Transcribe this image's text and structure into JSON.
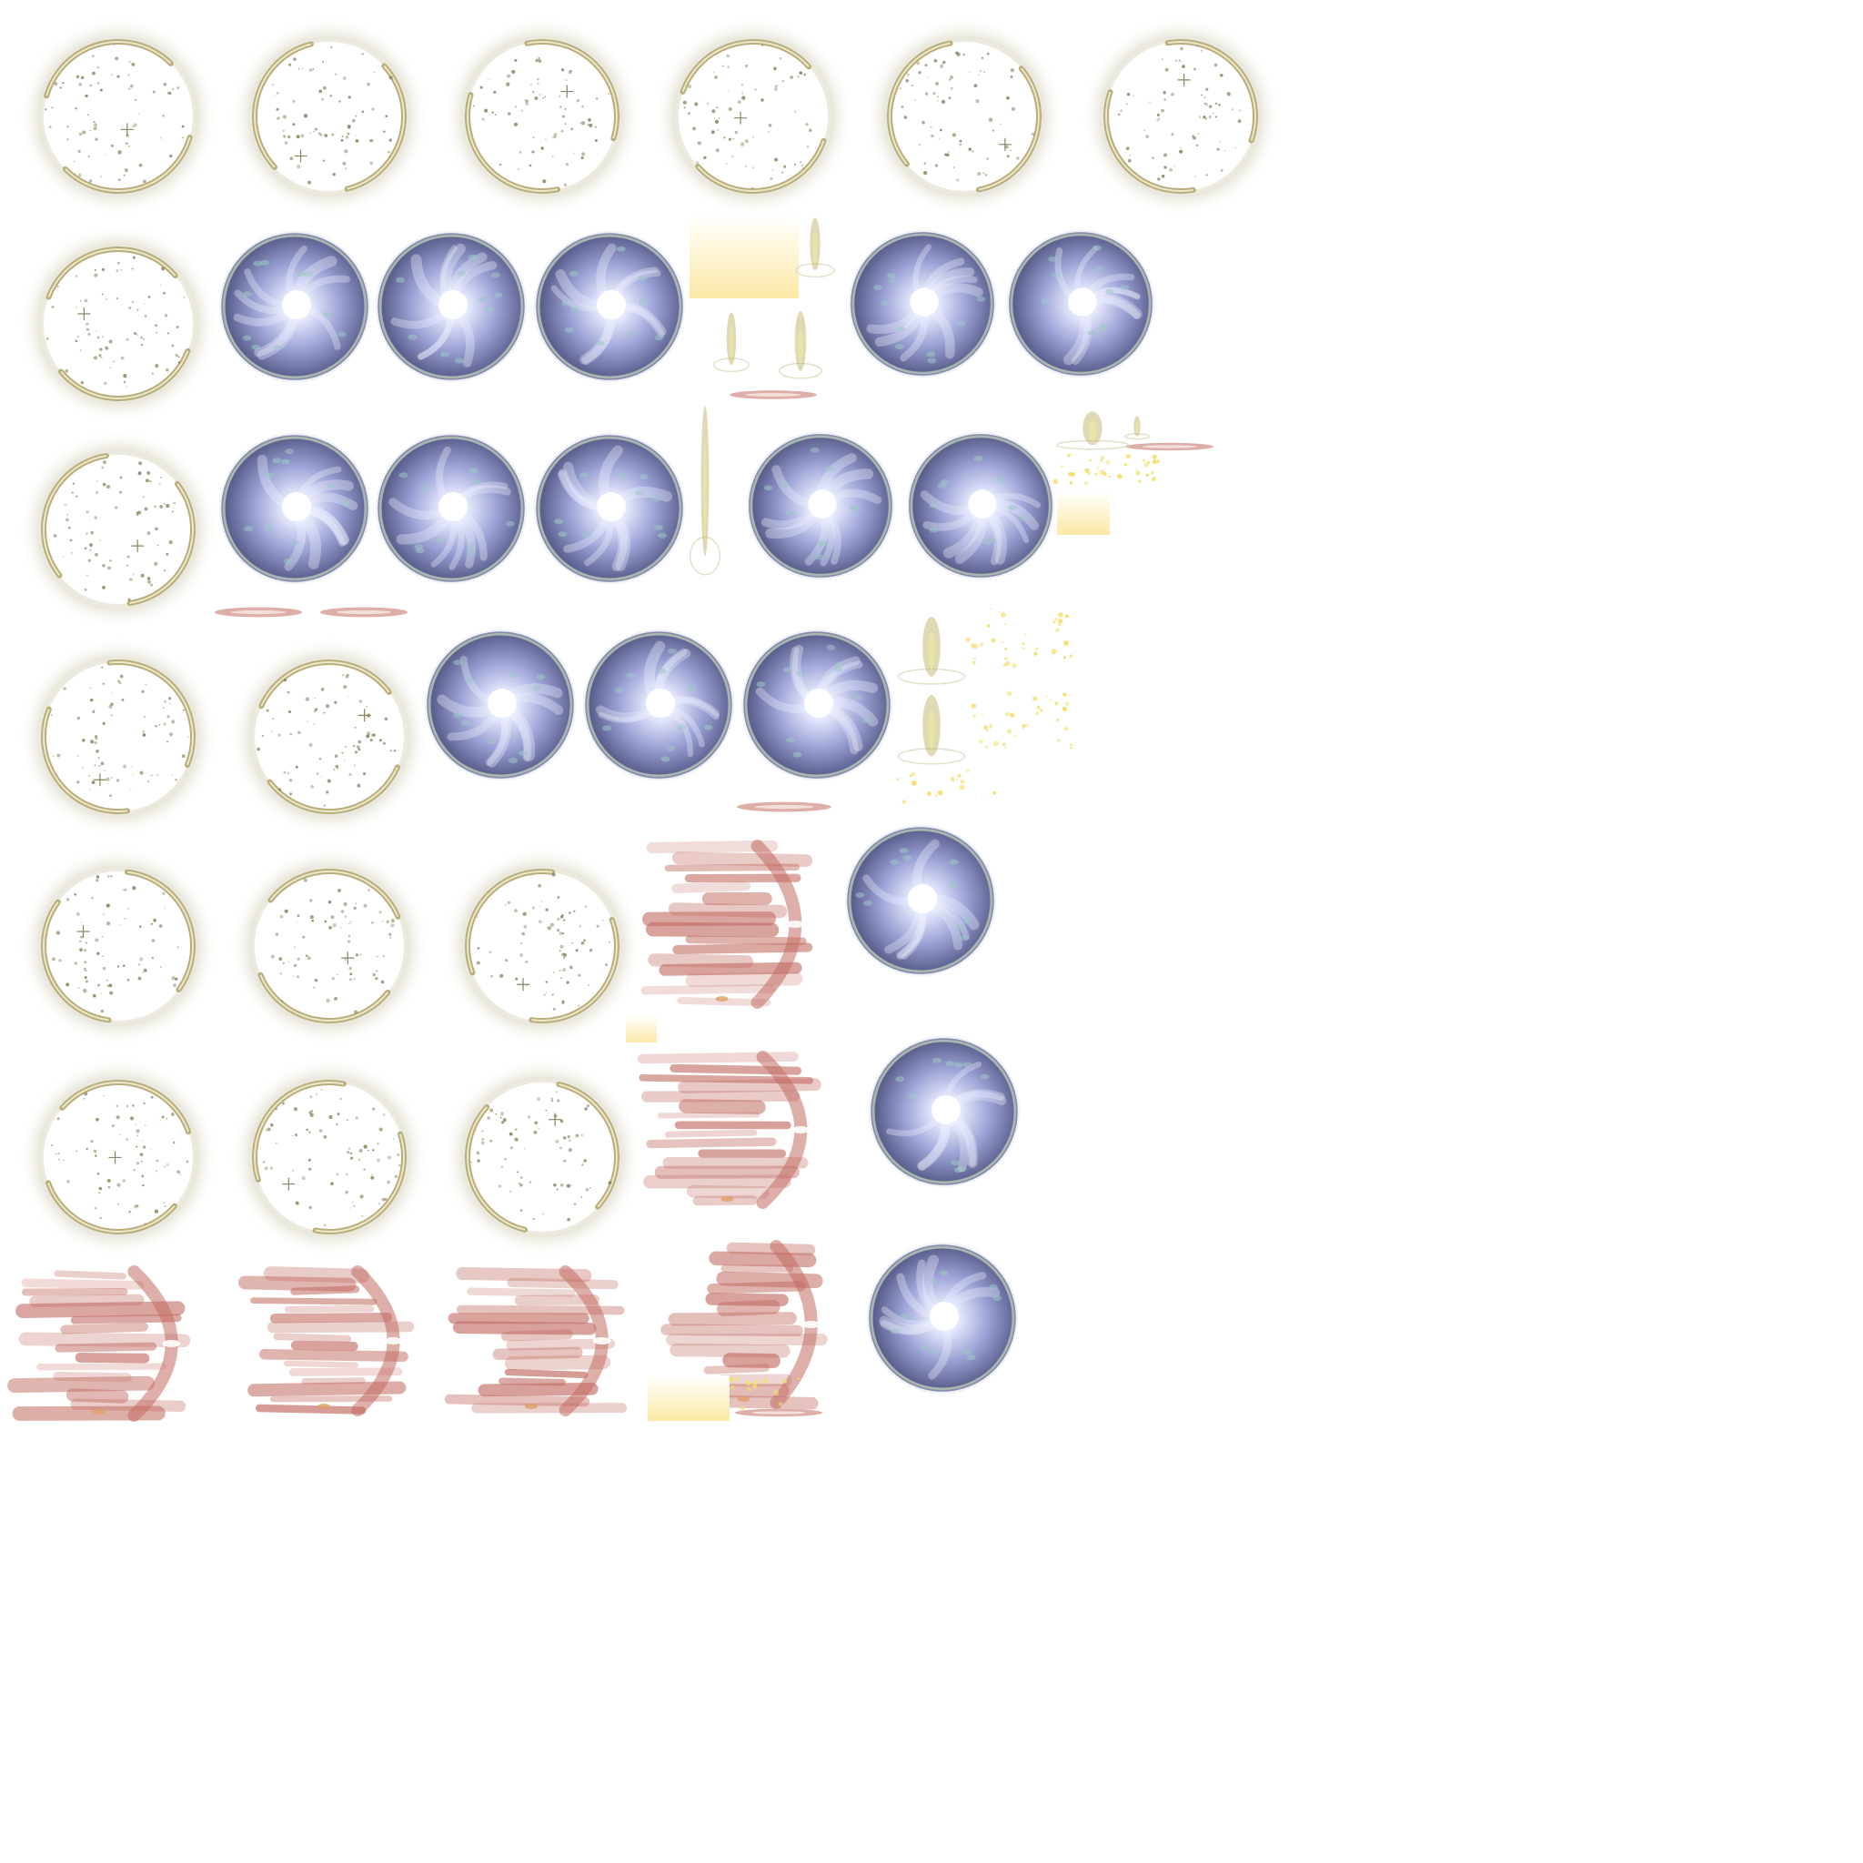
{
  "sheet": {
    "background": "#ffffff",
    "colors": {
      "ring_glow": "#d9d6c2",
      "ring_arc": "#b8ae7c",
      "ring_arc_light": "#ede6c8",
      "speck": "#8a8460",
      "vortex_outer": "#5b5f8e",
      "vortex_mid": "#9da3d6",
      "vortex_inner": "#e9ecff",
      "vortex_teal": "#9fc7c8",
      "vortex_rim": "#a9b5b0",
      "flame_red": "#c26c62",
      "flame_orange": "#e0a066",
      "strip_yellow": "#fbe9a6",
      "spark_yellow": "#f3df6c",
      "pillar_olive": "#b9ad5c"
    }
  },
  "sprites": [
    {
      "kind": "ring",
      "seed": 1
    },
    {
      "kind": "ring",
      "seed": 2
    },
    {
      "kind": "ring",
      "seed": 3
    },
    {
      "kind": "ring",
      "seed": 4
    },
    {
      "kind": "ring",
      "seed": 5
    },
    {
      "kind": "ring",
      "seed": 6
    },
    {
      "kind": "ring",
      "seed": 7
    },
    {
      "kind": "vortex",
      "seed": 11
    },
    {
      "kind": "vortex",
      "seed": 12
    },
    {
      "kind": "vortex",
      "seed": 13
    },
    {
      "kind": "gradient-strip"
    },
    {
      "kind": "light-pillar"
    },
    {
      "kind": "light-pillar"
    },
    {
      "kind": "light-pillar"
    },
    {
      "kind": "blur-streak"
    },
    {
      "kind": "vortex",
      "seed": 14
    },
    {
      "kind": "vortex",
      "seed": 15
    },
    {
      "kind": "ring",
      "seed": 8
    },
    {
      "kind": "vortex",
      "seed": 16
    },
    {
      "kind": "vortex",
      "seed": 17
    },
    {
      "kind": "vortex",
      "seed": 18
    },
    {
      "kind": "light-pillar"
    },
    {
      "kind": "vortex",
      "seed": 19
    },
    {
      "kind": "vortex",
      "seed": 20
    },
    {
      "kind": "light-pillar"
    },
    {
      "kind": "light-pillar"
    },
    {
      "kind": "blur-streak"
    },
    {
      "kind": "sparkles"
    },
    {
      "kind": "sparkles"
    },
    {
      "kind": "gradient-strip"
    },
    {
      "kind": "blur-streak"
    },
    {
      "kind": "blur-streak"
    },
    {
      "kind": "ring",
      "seed": 9
    },
    {
      "kind": "ring",
      "seed": 10
    },
    {
      "kind": "vortex",
      "seed": 21
    },
    {
      "kind": "vortex",
      "seed": 22
    },
    {
      "kind": "vortex",
      "seed": 23
    },
    {
      "kind": "light-pillar"
    },
    {
      "kind": "light-pillar"
    },
    {
      "kind": "sparkles"
    },
    {
      "kind": "sparkles"
    },
    {
      "kind": "sparkles"
    },
    {
      "kind": "sparkles"
    },
    {
      "kind": "sparkles"
    },
    {
      "kind": "blur-streak"
    },
    {
      "kind": "ring",
      "seed": 24
    },
    {
      "kind": "ring",
      "seed": 25
    },
    {
      "kind": "ring",
      "seed": 26
    },
    {
      "kind": "flame-burst",
      "seed": 31
    },
    {
      "kind": "vortex",
      "seed": 27
    },
    {
      "kind": "gradient-strip"
    },
    {
      "kind": "ring",
      "seed": 28
    },
    {
      "kind": "ring",
      "seed": 29
    },
    {
      "kind": "ring",
      "seed": 30
    },
    {
      "kind": "flame-burst",
      "seed": 32
    },
    {
      "kind": "vortex",
      "seed": 33
    },
    {
      "kind": "flame-burst",
      "seed": 34
    },
    {
      "kind": "flame-burst",
      "seed": 35
    },
    {
      "kind": "flame-burst",
      "seed": 36
    },
    {
      "kind": "flame-burst",
      "seed": 37
    },
    {
      "kind": "vortex",
      "seed": 38
    },
    {
      "kind": "gradient-strip"
    },
    {
      "kind": "sparkles"
    },
    {
      "kind": "blur-streak"
    }
  ]
}
